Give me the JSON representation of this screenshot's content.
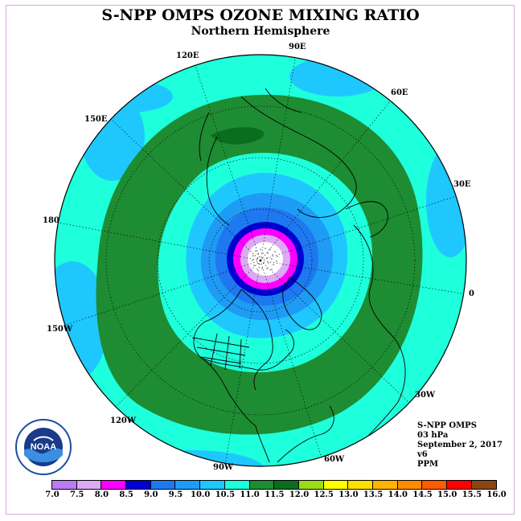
{
  "title": "S-NPP OMPS OZONE MIXING RATIO",
  "subtitle": "Northern Hemisphere",
  "longitude_labels": {
    "lon_90e": "90E",
    "lon_120e": "120E",
    "lon_60e": "60E",
    "lon_150e": "150E",
    "lon_30e": "30E",
    "lon_180": "180",
    "lon_0": "0",
    "lon_150w": "150W",
    "lon_30w": "30W",
    "lon_120w": "120W",
    "lon_60w": "60W",
    "lon_90w": "90W"
  },
  "info": {
    "instrument": "S-NPP OMPS",
    "level": "03 hPa",
    "date": "September 2, 2017",
    "version": "v6",
    "units": "PPM"
  },
  "colorbar": {
    "ticks": [
      "7.0",
      "7.5",
      "8.0",
      "8.5",
      "9.0",
      "9.5",
      "10.0",
      "10.5",
      "11.0",
      "11.5",
      "12.0",
      "12.5",
      "13.0",
      "13.5",
      "14.0",
      "14.5",
      "15.0",
      "15.5",
      "16.0"
    ],
    "colors": [
      "#b97cf3",
      "#dcaaf5",
      "#ff00ff",
      "#0000d0",
      "#1e78f0",
      "#1e9bf5",
      "#1ec8ff",
      "#1effdc",
      "#1e8c32",
      "#0a6e1e",
      "#9bdc19",
      "#ffff00",
      "#ffe100",
      "#ffb400",
      "#ff8c00",
      "#ff5a00",
      "#ff0000",
      "#8b4513"
    ]
  },
  "logo_text": "NOAA"
}
